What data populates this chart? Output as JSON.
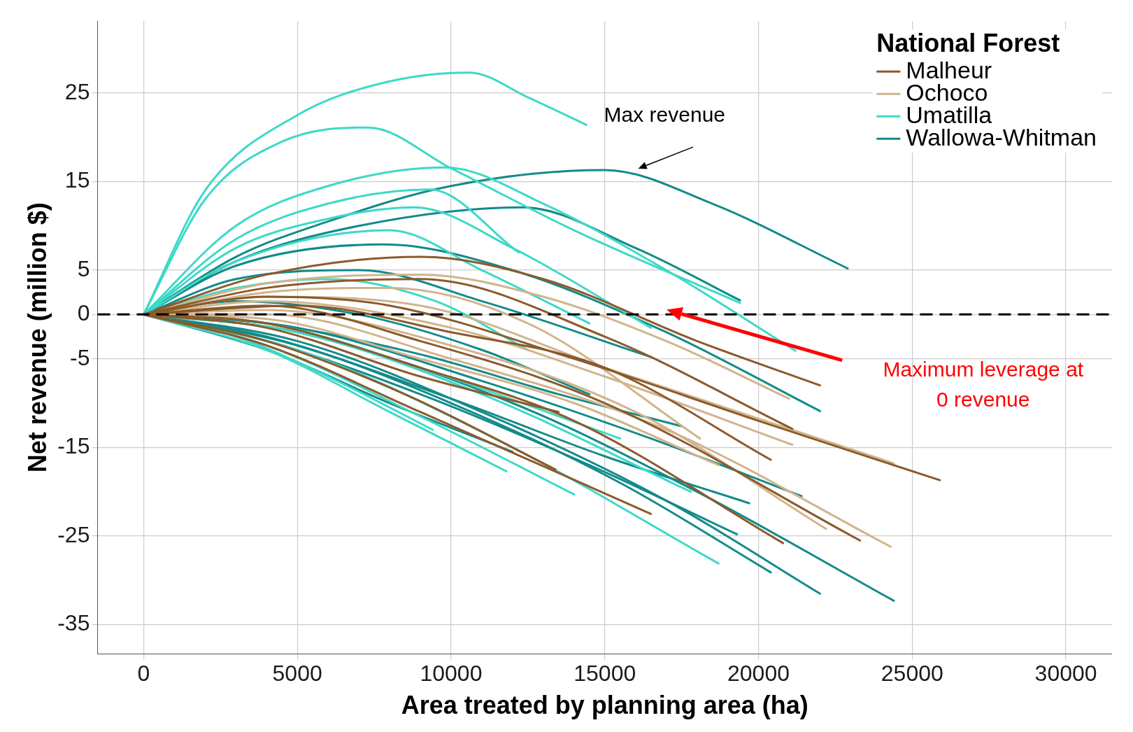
{
  "chart_data": {
    "type": "line",
    "xlabel": "Area treated by planning area (ha)",
    "ylabel": "Net revenue (million $)",
    "legend_title": "National Forest",
    "legend": "top right",
    "grid": true,
    "marker": "none",
    "line_style": "solid",
    "xlim": [
      -1500,
      31500
    ],
    "ylim": [
      -38.3,
      33.1
    ],
    "xticks": [
      0,
      5000,
      10000,
      15000,
      20000,
      25000,
      30000
    ],
    "yticks": [
      25,
      15,
      5,
      0,
      -5,
      -15,
      -25,
      -35
    ],
    "ref_lines": [
      {
        "axis": "y",
        "value": 0,
        "color": "#000000",
        "line_style": "dashed"
      }
    ],
    "annotations": [
      "Max revenue",
      "Maximum leverage at\n0 revenue"
    ],
    "series": [
      {
        "name": "Malheur",
        "color": "#8b5a2b",
        "x": [
          0,
          4000,
          9000,
          13000,
          18000,
          22000
        ],
        "values": [
          0,
          4.5,
          6.5,
          4,
          -3,
          -8
        ]
      },
      {
        "color": "#8b5a2b",
        "x": [
          0,
          4000,
          8000,
          14000,
          20000,
          25900
        ],
        "values": [
          0,
          2,
          1,
          -5,
          -12,
          -18.7
        ]
      },
      {
        "color": "#8b5a2b",
        "x": [
          0,
          4000,
          9000,
          15000,
          23300
        ],
        "values": [
          0,
          1,
          -3,
          -10,
          -25.5
        ]
      },
      {
        "color": "#8b5a2b",
        "x": [
          0,
          4000,
          9000,
          14000,
          20800
        ],
        "values": [
          0,
          -1,
          -6,
          -12,
          -25.8
        ]
      },
      {
        "color": "#8b5a2b",
        "x": [
          0,
          5000,
          10000,
          15000,
          20400
        ],
        "values": [
          0,
          1,
          -2,
          -6,
          -16.4
        ]
      },
      {
        "color": "#8b5a2b",
        "x": [
          0,
          4000,
          9000,
          15000,
          21100
        ],
        "values": [
          0,
          3,
          4,
          -2.5,
          -12.9
        ]
      },
      {
        "color": "#8b5a2b",
        "x": [
          0,
          4000,
          8500,
          13400
        ],
        "values": [
          0,
          -3,
          -9,
          -17.5
        ]
      },
      {
        "color": "#8b5a2b",
        "x": [
          0,
          4000,
          9000,
          13500
        ],
        "values": [
          0,
          -1.5,
          -7,
          -11
        ]
      },
      {
        "color": "#8b5a2b",
        "x": [
          0,
          4000,
          9000,
          16500
        ],
        "values": [
          0,
          -3.5,
          -11,
          -22.5
        ]
      },
      {
        "name": "Ochoco",
        "color": "#d2b48c",
        "x": [
          0,
          4000,
          9000,
          13000,
          17000,
          21000
        ],
        "values": [
          0,
          3.5,
          4.5,
          2,
          -3,
          -9.5
        ]
      },
      {
        "color": "#d2b48c",
        "x": [
          0,
          4000,
          9000,
          15000,
          24400
        ],
        "values": [
          0,
          2,
          1,
          -6,
          -16.8
        ]
      },
      {
        "color": "#d2b48c",
        "x": [
          0,
          4000,
          10000,
          17000,
          24300
        ],
        "values": [
          0,
          0,
          -5,
          -13,
          -26.2
        ]
      },
      {
        "color": "#d2b48c",
        "x": [
          0,
          4000,
          10000,
          16000,
          22200
        ],
        "values": [
          0,
          0.5,
          -3.5,
          -11,
          -24.2
        ]
      },
      {
        "color": "#d2b48c",
        "x": [
          0,
          4000,
          10000,
          15000,
          21100
        ],
        "values": [
          0,
          1.5,
          -1.5,
          -7,
          -14.7
        ]
      },
      {
        "color": "#d2b48c",
        "x": [
          0,
          4000,
          9000,
          14000,
          18700
        ],
        "values": [
          0,
          -0.5,
          -5,
          -10,
          -17
        ]
      },
      {
        "color": "#d2b48c",
        "x": [
          0,
          4000,
          8000,
          12500,
          18100
        ],
        "values": [
          0,
          2.5,
          3,
          -1,
          -14
        ]
      },
      {
        "name": "Umatilla",
        "color": "#3dd9c8",
        "x": [
          0,
          2000,
          5000,
          8000,
          10600,
          12500,
          14400
        ],
        "values": [
          0,
          14,
          22.5,
          26.3,
          27.3,
          24.5,
          21.4
        ]
      },
      {
        "color": "#3dd9c8",
        "x": [
          0,
          2000,
          4500,
          7300,
          10000,
          14000,
          19400
        ],
        "values": [
          0,
          13,
          19.5,
          21.1,
          16.5,
          9.5,
          1.3
        ]
      },
      {
        "color": "#3dd9c8",
        "x": [
          0,
          3000,
          6000,
          9800,
          13000,
          17000,
          21200
        ],
        "values": [
          0,
          10,
          14.5,
          16.6,
          12.5,
          5,
          -4.1
        ]
      },
      {
        "color": "#3dd9c8",
        "x": [
          0,
          3000,
          6000,
          9300,
          12200
        ],
        "values": [
          0,
          8.5,
          12.5,
          14.1,
          7
        ]
      },
      {
        "color": "#3dd9c8",
        "x": [
          0,
          3000,
          6000,
          8800,
          12000,
          16500
        ],
        "values": [
          0,
          7.5,
          10.8,
          12.1,
          7.5,
          -1.5
        ]
      },
      {
        "color": "#3dd9c8",
        "x": [
          0,
          3000,
          8000,
          11000,
          14500
        ],
        "values": [
          0,
          6,
          9.5,
          5,
          -1
        ]
      },
      {
        "color": "#3dd9c8",
        "x": [
          0,
          3000,
          6000,
          9500,
          12500
        ],
        "values": [
          0,
          3,
          4,
          1.5,
          -4
        ]
      },
      {
        "color": "#3dd9c8",
        "x": [
          0,
          3000,
          6000,
          9400
        ],
        "values": [
          0,
          -2.5,
          -7,
          -13
        ]
      },
      {
        "color": "#3dd9c8",
        "x": [
          0,
          4000,
          8000,
          11800
        ],
        "values": [
          0,
          -4,
          -11,
          -17.7
        ]
      },
      {
        "color": "#3dd9c8",
        "x": [
          0,
          4000,
          9000,
          14000
        ],
        "values": [
          0,
          -3.5,
          -11.5,
          -20.3
        ]
      },
      {
        "color": "#3dd9c8",
        "x": [
          0,
          5000,
          12000,
          18700
        ],
        "values": [
          0,
          -4,
          -15,
          -28.1
        ]
      },
      {
        "color": "#3dd9c8",
        "x": [
          0,
          5000,
          11000,
          17800
        ],
        "values": [
          0,
          -2,
          -9,
          -20
        ]
      },
      {
        "color": "#3dd9c8",
        "x": [
          0,
          4000,
          9000,
          15500
        ],
        "values": [
          0,
          -1,
          -6,
          -14
        ]
      },
      {
        "name": "Wallowa-Whitman",
        "color": "#138a8a",
        "x": [
          0,
          3000,
          6000,
          10000,
          15000,
          18500,
          22900
        ],
        "values": [
          0,
          6.5,
          10.5,
          14.5,
          16.3,
          12.5,
          5.2
        ]
      },
      {
        "color": "#138a8a",
        "x": [
          0,
          3000,
          7000,
          12300,
          16000,
          19400
        ],
        "values": [
          0,
          6,
          10,
          12.1,
          7.5,
          1.6
        ]
      },
      {
        "color": "#138a8a",
        "x": [
          0,
          3000,
          7800,
          12000,
          17000,
          22000
        ],
        "values": [
          0,
          5.5,
          7.9,
          5,
          -2,
          -10.9
        ]
      },
      {
        "color": "#138a8a",
        "x": [
          0,
          3000,
          7000,
          11000,
          16500
        ],
        "values": [
          0,
          4,
          5,
          1.5,
          -4.8
        ]
      },
      {
        "color": "#138a8a",
        "x": [
          0,
          5000,
          12000,
          18000,
          24400
        ],
        "values": [
          0,
          -2,
          -10,
          -20,
          -32.3
        ]
      },
      {
        "color": "#138a8a",
        "x": [
          0,
          5000,
          11000,
          17000,
          22000
        ],
        "values": [
          0,
          -3,
          -11,
          -21,
          -31.5
        ]
      },
      {
        "color": "#138a8a",
        "x": [
          0,
          5000,
          10000,
          15500,
          20400
        ],
        "values": [
          0,
          -3.5,
          -10,
          -19,
          -29.1
        ]
      },
      {
        "color": "#138a8a",
        "x": [
          0,
          5000,
          11000,
          16500,
          21400
        ],
        "values": [
          0,
          -1.5,
          -7.5,
          -14,
          -20.5
        ]
      },
      {
        "color": "#138a8a",
        "x": [
          0,
          4000,
          10000,
          15000,
          19700
        ],
        "values": [
          0,
          -2.5,
          -9.5,
          -16,
          -21.3
        ]
      },
      {
        "color": "#138a8a",
        "x": [
          0,
          4000,
          9000,
          14500,
          19300
        ],
        "values": [
          0,
          -3,
          -9,
          -17,
          -24.8
        ]
      },
      {
        "color": "#138a8a",
        "x": [
          0,
          4000,
          9000,
          13500,
          17500
        ],
        "values": [
          0,
          -1,
          -4.5,
          -9,
          -12.6
        ]
      },
      {
        "color": "#138a8a",
        "x": [
          0,
          4000,
          8000,
          12000
        ],
        "values": [
          0,
          -4,
          -10,
          -15.5
        ]
      },
      {
        "color": "#138a8a",
        "x": [
          0,
          3000,
          7000,
          11000,
          14500
        ],
        "values": [
          0,
          1.5,
          0,
          -4,
          -9
        ]
      }
    ]
  }
}
